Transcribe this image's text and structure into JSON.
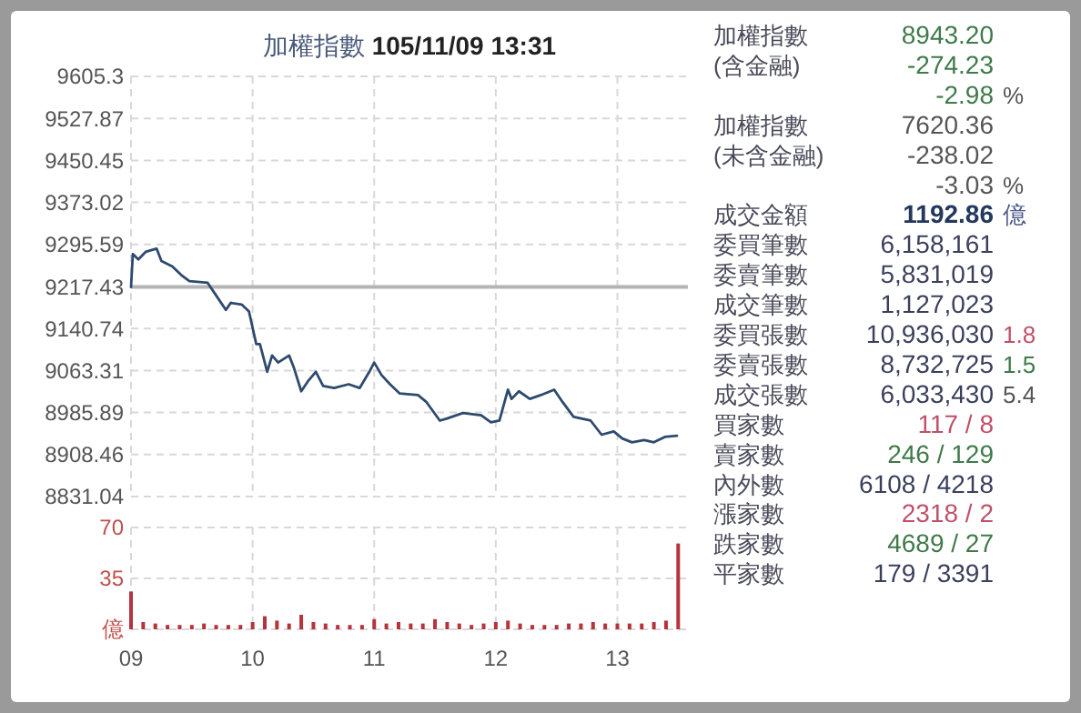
{
  "chart_data": [
    {
      "type": "line",
      "title": "加權指數 105/11/09 13:31",
      "color": "#2e4a6e",
      "grid": true,
      "tick_labels": "y",
      "x": [
        9.0,
        9.015,
        9.06,
        9.12,
        9.21,
        9.25,
        9.34,
        9.42,
        9.48,
        9.63,
        9.69,
        9.78,
        9.82,
        9.91,
        9.97,
        10.03,
        10.06,
        10.12,
        10.16,
        10.21,
        10.3,
        10.34,
        10.4,
        10.46,
        10.52,
        10.58,
        10.67,
        10.79,
        10.88,
        10.96,
        11.0,
        11.06,
        11.13,
        11.21,
        11.36,
        11.43,
        11.54,
        11.6,
        11.73,
        11.88,
        11.96,
        12.03,
        12.1,
        12.13,
        12.19,
        12.28,
        12.37,
        12.48,
        12.55,
        12.64,
        12.78,
        12.87,
        12.97,
        13.04,
        13.12,
        13.22,
        13.3,
        13.39,
        13.49
      ],
      "values": [
        9217,
        9278,
        9268,
        9282,
        9288,
        9265,
        9255,
        9238,
        9228,
        9225,
        9205,
        9175,
        9188,
        9185,
        9172,
        9112,
        9112,
        9061,
        9091,
        9078,
        9091,
        9068,
        9025,
        9045,
        9061,
        9035,
        9031,
        9038,
        9031,
        9061,
        9078,
        9055,
        9038,
        9021,
        9018,
        9005,
        8971,
        8975,
        8985,
        8981,
        8968,
        8971,
        9028,
        9011,
        9025,
        9011,
        9018,
        9028,
        9005,
        8978,
        8971,
        8945,
        8951,
        8938,
        8931,
        8935,
        8931,
        8941,
        8943
      ],
      "xlim": [
        9,
        13.58
      ],
      "xticks": [
        9,
        10,
        11,
        12,
        13
      ],
      "ylim": [
        8831.04,
        9605.3
      ],
      "yticks": [
        8831.04,
        8908.46,
        8985.89,
        9063.31,
        9140.74,
        9217.43,
        9295.59,
        9373.02,
        9450.45,
        9527.87,
        9605.3
      ],
      "ref_lines": [
        {
          "axis": "y",
          "value": 9217.43,
          "color": "#b4b4b4"
        }
      ]
    },
    {
      "type": "bar",
      "color": "#b5343c",
      "grid": true,
      "x": [
        9.0,
        9.1,
        9.2,
        9.3,
        9.4,
        9.5,
        9.6,
        9.7,
        9.8,
        9.9,
        10.0,
        10.1,
        10.2,
        10.3,
        10.4,
        10.5,
        10.6,
        10.7,
        10.8,
        10.9,
        11.0,
        11.1,
        11.2,
        11.3,
        11.4,
        11.5,
        11.6,
        11.7,
        11.8,
        11.9,
        12.0,
        12.1,
        12.2,
        12.3,
        12.4,
        12.5,
        12.6,
        12.7,
        12.8,
        12.9,
        13.0,
        13.1,
        13.2,
        13.3,
        13.4,
        13.5
      ],
      "values": [
        26,
        5,
        4,
        3,
        3,
        3,
        4,
        3,
        3,
        3,
        5,
        9,
        6,
        4,
        10,
        5,
        4,
        3,
        3,
        3,
        7,
        4,
        5,
        4,
        4,
        7,
        5,
        4,
        3,
        4,
        5,
        6,
        4,
        3,
        3,
        3,
        4,
        4,
        5,
        4,
        4,
        4,
        4,
        5,
        6,
        59
      ],
      "xlim": [
        9,
        13.58
      ],
      "xticks": [
        {
          "value": 9,
          "label": "09"
        },
        {
          "value": 10,
          "label": "10"
        },
        {
          "value": 11,
          "label": "11"
        },
        {
          "value": 12,
          "label": "12"
        },
        {
          "value": 13,
          "label": "13"
        }
      ],
      "ylim": [
        0,
        70
      ],
      "yticks": [
        {
          "value": 0,
          "label": "億"
        },
        35,
        70
      ]
    },
    {
      "type": "other",
      "categories": [
        "加權指數",
        "(含金融)",
        null,
        "加權指數",
        "(未含金融)",
        null,
        "成交金額",
        "委買筆數",
        "委賣筆數",
        "成交筆數",
        "委買張數",
        "委賣張數",
        "成交張數",
        "買家數",
        "賣家數",
        "內外數",
        "漲家數",
        "跌家數",
        "平家數"
      ],
      "annotations": [
        "8943.20",
        "-274.23",
        "-2.98",
        "7620.36",
        "-238.02",
        "-3.03",
        "1192.86",
        "6,158,161",
        "5,831,019",
        "1,127,023",
        "10,936,030",
        "8,732,725",
        "6,033,430",
        "117 / 8",
        "246 / 129",
        "6108 / 4218",
        "2318 / 2",
        "4689 / 27",
        "179 / 3391"
      ],
      "y2_categories": [
        null,
        null,
        "%",
        null,
        null,
        "%",
        "億",
        null,
        null,
        null,
        "1.8",
        "1.5",
        "5.4",
        null,
        null,
        null,
        null,
        null,
        null
      ]
    }
  ]
}
